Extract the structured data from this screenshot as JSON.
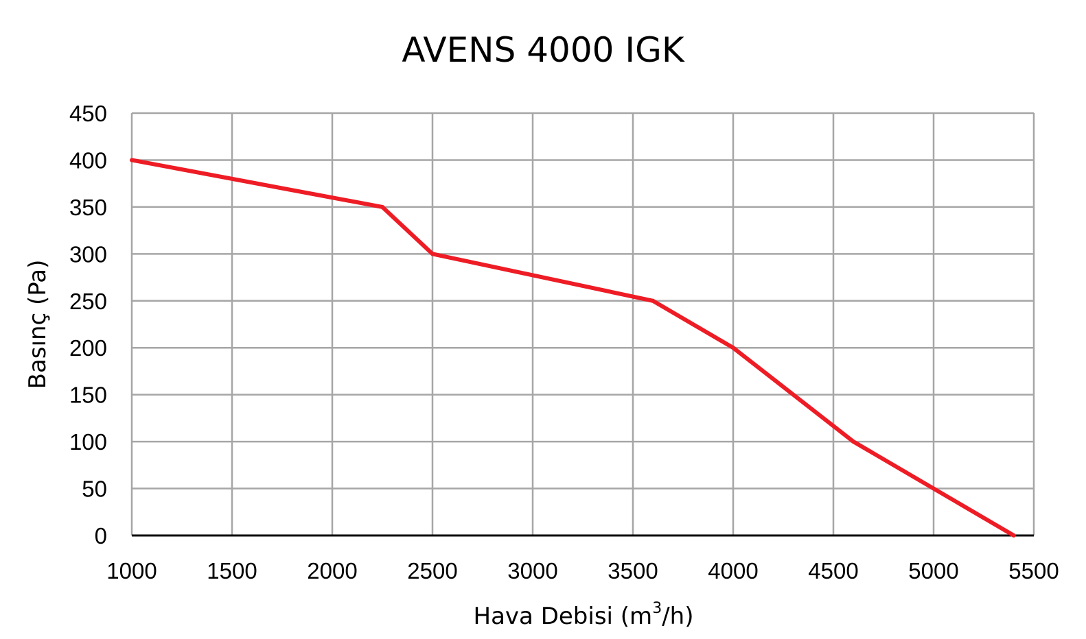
{
  "chart_data": {
    "type": "line",
    "title": "AVENS 4000 IGK",
    "xlabel": "Hava Debisi (m",
    "xlabel_superscript": "3",
    "xlabel_suffix": "/h)",
    "ylabel": "Basınç (Pa)",
    "xlim": [
      1000,
      5500
    ],
    "ylim": [
      0,
      450
    ],
    "x_ticks": [
      1000,
      1500,
      2000,
      2500,
      3000,
      3500,
      4000,
      4500,
      5000,
      5500
    ],
    "y_ticks": [
      0,
      50,
      100,
      150,
      200,
      250,
      300,
      350,
      400,
      450
    ],
    "grid": true,
    "legend": "none",
    "series": [
      {
        "color": "#ee1c25",
        "x": [
          1000,
          2250,
          2500,
          3600,
          4000,
          4600,
          5000,
          5400
        ],
        "y": [
          400,
          350,
          300,
          250,
          200,
          100,
          50,
          0
        ]
      }
    ]
  }
}
